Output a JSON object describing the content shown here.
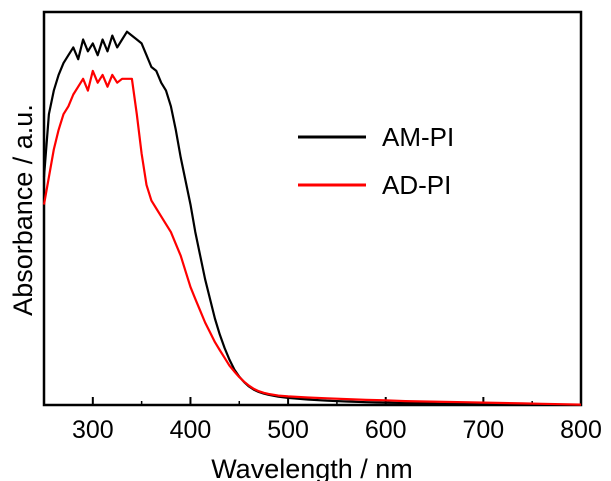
{
  "chart_data": {
    "type": "line",
    "title": "",
    "xlabel": "Wavelength / nm",
    "ylabel": "Absorbance / a.u.",
    "xlim": [
      250,
      800
    ],
    "ylim": [
      0,
      1.0
    ],
    "x_ticks": [
      300,
      400,
      500,
      600,
      700,
      800
    ],
    "x_tick_labels": [
      "300",
      "400",
      "500",
      "600",
      "700",
      "800"
    ],
    "y_tick_labels_shown": false,
    "grid": false,
    "legend_position": "center-right",
    "series": [
      {
        "name": "AM-PI",
        "color": "#000000",
        "x": [
          250,
          255,
          260,
          265,
          270,
          275,
          280,
          285,
          290,
          295,
          300,
          305,
          310,
          315,
          320,
          325,
          330,
          335,
          340,
          345,
          350,
          355,
          360,
          365,
          370,
          375,
          380,
          385,
          390,
          395,
          400,
          405,
          410,
          415,
          420,
          425,
          430,
          435,
          440,
          445,
          450,
          455,
          460,
          465,
          470,
          475,
          480,
          490,
          500,
          520,
          540,
          560,
          580,
          600,
          620,
          640,
          660,
          680,
          700,
          720,
          740,
          760,
          780,
          800
        ],
        "y": [
          0.58,
          0.74,
          0.8,
          0.84,
          0.87,
          0.89,
          0.91,
          0.88,
          0.93,
          0.9,
          0.92,
          0.89,
          0.93,
          0.9,
          0.94,
          0.91,
          0.93,
          0.95,
          0.94,
          0.93,
          0.92,
          0.89,
          0.86,
          0.85,
          0.82,
          0.8,
          0.76,
          0.7,
          0.63,
          0.57,
          0.51,
          0.44,
          0.38,
          0.32,
          0.27,
          0.22,
          0.18,
          0.145,
          0.115,
          0.09,
          0.072,
          0.058,
          0.047,
          0.039,
          0.033,
          0.029,
          0.026,
          0.021,
          0.018,
          0.014,
          0.011,
          0.009,
          0.007,
          0.006,
          0.005,
          0.004,
          0.003,
          0.003,
          0.002,
          0.002,
          0.001,
          0.001,
          0.001,
          0.001
        ]
      },
      {
        "name": "AD-PI",
        "color": "#ff0000",
        "x": [
          250,
          255,
          260,
          265,
          270,
          275,
          280,
          285,
          290,
          295,
          300,
          305,
          310,
          315,
          320,
          325,
          330,
          335,
          340,
          345,
          350,
          355,
          360,
          365,
          370,
          375,
          380,
          385,
          390,
          395,
          400,
          405,
          410,
          415,
          420,
          425,
          430,
          435,
          440,
          445,
          450,
          455,
          460,
          465,
          470,
          475,
          480,
          490,
          500,
          520,
          540,
          560,
          580,
          600,
          620,
          640,
          660,
          680,
          700,
          720,
          740,
          760,
          780,
          800
        ],
        "y": [
          0.51,
          0.58,
          0.65,
          0.7,
          0.74,
          0.76,
          0.79,
          0.81,
          0.83,
          0.8,
          0.85,
          0.82,
          0.84,
          0.81,
          0.84,
          0.82,
          0.83,
          0.83,
          0.83,
          0.74,
          0.64,
          0.56,
          0.52,
          0.5,
          0.48,
          0.46,
          0.44,
          0.41,
          0.38,
          0.34,
          0.3,
          0.27,
          0.24,
          0.21,
          0.185,
          0.16,
          0.14,
          0.12,
          0.1,
          0.085,
          0.071,
          0.059,
          0.049,
          0.041,
          0.035,
          0.031,
          0.028,
          0.024,
          0.022,
          0.019,
          0.017,
          0.015,
          0.013,
          0.012,
          0.01,
          0.009,
          0.008,
          0.007,
          0.006,
          0.005,
          0.004,
          0.003,
          0.002,
          0.001
        ]
      }
    ]
  }
}
